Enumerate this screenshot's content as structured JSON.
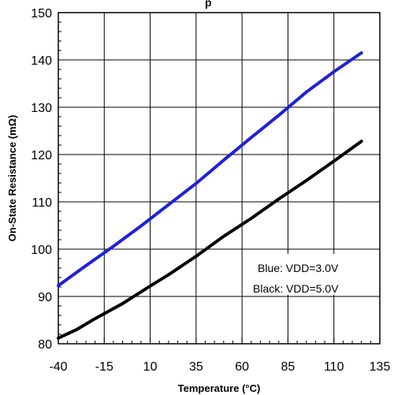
{
  "chart_data": {
    "type": "line",
    "title": "p",
    "xlabel": "Temperature (°C)",
    "ylabel": "On-State Resistance (mΩ)",
    "xlim": [
      -40,
      135
    ],
    "ylim": [
      80,
      150
    ],
    "xticks": [
      -40,
      -15,
      10,
      35,
      60,
      85,
      110,
      135
    ],
    "yticks": [
      80,
      90,
      100,
      110,
      120,
      130,
      140,
      150
    ],
    "grid": true,
    "annotations": [
      "Blue: VDD=3.0V",
      "Black: VDD=5.0V"
    ],
    "series": [
      {
        "color": "#1f1fe0",
        "x": [
          -40,
          -25,
          -10,
          5,
          20,
          35,
          50,
          65,
          80,
          95,
          110,
          125
        ],
        "y": [
          92.3,
          96.5,
          100.6,
          104.9,
          109.4,
          113.9,
          118.8,
          123.6,
          128.3,
          133.2,
          137.5,
          141.5
        ]
      },
      {
        "color": "#000000",
        "x": [
          -40,
          -30,
          -20,
          -5,
          10,
          20,
          35,
          50,
          65,
          80,
          95,
          110,
          125
        ],
        "y": [
          81.2,
          83.0,
          85.3,
          88.5,
          92.2,
          94.6,
          98.5,
          102.7,
          106.5,
          110.6,
          114.5,
          118.6,
          122.8
        ]
      }
    ]
  }
}
